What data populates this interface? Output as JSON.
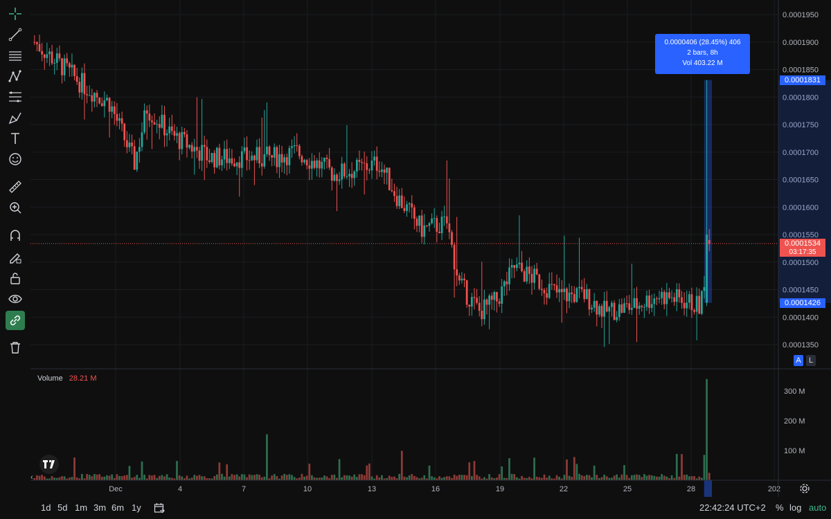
{
  "toolbar": {
    "tools": [
      {
        "name": "crosshair-icon"
      },
      {
        "name": "trend-line-icon"
      },
      {
        "name": "horizontal-lines-icon"
      },
      {
        "name": "pattern-icon"
      },
      {
        "name": "fib-icon"
      },
      {
        "name": "brush-icon"
      },
      {
        "name": "text-icon"
      },
      {
        "name": "emoji-icon"
      },
      {
        "name": "ruler-icon"
      },
      {
        "name": "zoom-in-icon"
      },
      {
        "name": "magnet-icon"
      },
      {
        "name": "lock-drawing-icon"
      },
      {
        "name": "unlock-icon"
      },
      {
        "name": "eye-icon"
      },
      {
        "name": "link-icon"
      },
      {
        "name": "trash-icon"
      }
    ],
    "active_tool": "link-icon"
  },
  "chart_data": {
    "type": "candlestick",
    "price_axis": {
      "ticks": [
        "0.0001950",
        "0.0001900",
        "0.0001850",
        "0.0001800",
        "0.0001750",
        "0.0001700",
        "0.0001650",
        "0.0001600",
        "0.0001550",
        "0.0001500",
        "0.0001450",
        "0.0001400",
        "0.0001350"
      ],
      "range": [
        0.000132,
        0.000197
      ]
    },
    "volume_axis": {
      "ticks": [
        "300 M",
        "200 M",
        "100 M"
      ],
      "range": [
        0,
        350
      ]
    },
    "time_axis": {
      "ticks": [
        "Dec",
        "4",
        "7",
        "10",
        "13",
        "16",
        "19",
        "22",
        "25",
        "28",
        "202"
      ]
    },
    "anchors": [
      {
        "i": 0,
        "p": 0.00019
      },
      {
        "i": 10,
        "p": 0.000186
      },
      {
        "i": 20,
        "p": 0.000182
      },
      {
        "i": 30,
        "p": 0.000179
      },
      {
        "i": 40,
        "p": 0.000168
      },
      {
        "i": 45,
        "p": 0.000178
      },
      {
        "i": 55,
        "p": 0.000173
      },
      {
        "i": 70,
        "p": 0.000169
      },
      {
        "i": 95,
        "p": 0.000169
      },
      {
        "i": 105,
        "p": 0.00017
      },
      {
        "i": 120,
        "p": 0.000166
      },
      {
        "i": 130,
        "p": 0.000167
      },
      {
        "i": 138,
        "p": 0.000168
      },
      {
        "i": 145,
        "p": 0.000162
      },
      {
        "i": 155,
        "p": 0.000156
      },
      {
        "i": 165,
        "p": 0.000157
      },
      {
        "i": 170,
        "p": 0.000146
      },
      {
        "i": 178,
        "p": 0.000141
      },
      {
        "i": 185,
        "p": 0.000143
      },
      {
        "i": 192,
        "p": 0.000149
      },
      {
        "i": 200,
        "p": 0.000147
      },
      {
        "i": 210,
        "p": 0.000144
      },
      {
        "i": 220,
        "p": 0.000144
      },
      {
        "i": 228,
        "p": 0.000141
      },
      {
        "i": 240,
        "p": 0.000142
      },
      {
        "i": 250,
        "p": 0.000144
      },
      {
        "i": 260,
        "p": 0.000143
      },
      {
        "i": 266,
        "p": 0.000142
      },
      {
        "i": 268,
        "p": 0.000145
      }
    ],
    "last_candles": [
      {
        "o": 0.0001426,
        "h": 0.0001831,
        "l": 0.000142,
        "c": 0.000155
      },
      {
        "o": 0.000154,
        "h": 0.000156,
        "l": 0.000152,
        "c": 0.0001534
      }
    ],
    "bar_count": 271,
    "volume_spike": 340,
    "spike_volume_bar": 309,
    "spike_volume_big": 165,
    "volume_base": 18,
    "colors": {
      "up": "#26a69a",
      "down": "#ef5350",
      "up_vol": "#2e6e4f",
      "down_vol": "#8e3b37"
    },
    "current_price": "0.0001534",
    "countdown": "03:17:35",
    "measure": {
      "top_price": "0.0001831",
      "bottom_price": "0.0001426",
      "top_value": 0.0001831,
      "bottom_value": 0.0001426
    }
  },
  "tooltip": {
    "line1": "0.0000406 (28.45%) 406",
    "line2": "2 bars, 8h",
    "line3": "Vol 403.22 M"
  },
  "volume": {
    "label": "Volume",
    "value": "28.21 M"
  },
  "scale_buttons": {
    "auto_label": "A",
    "log_label": "L"
  },
  "bottom": {
    "ranges": [
      "1d",
      "5d",
      "1m",
      "3m",
      "6m",
      "1y"
    ],
    "time": "22:42:24 UTC+2",
    "percent": "%",
    "log": "log",
    "auto": "auto"
  }
}
